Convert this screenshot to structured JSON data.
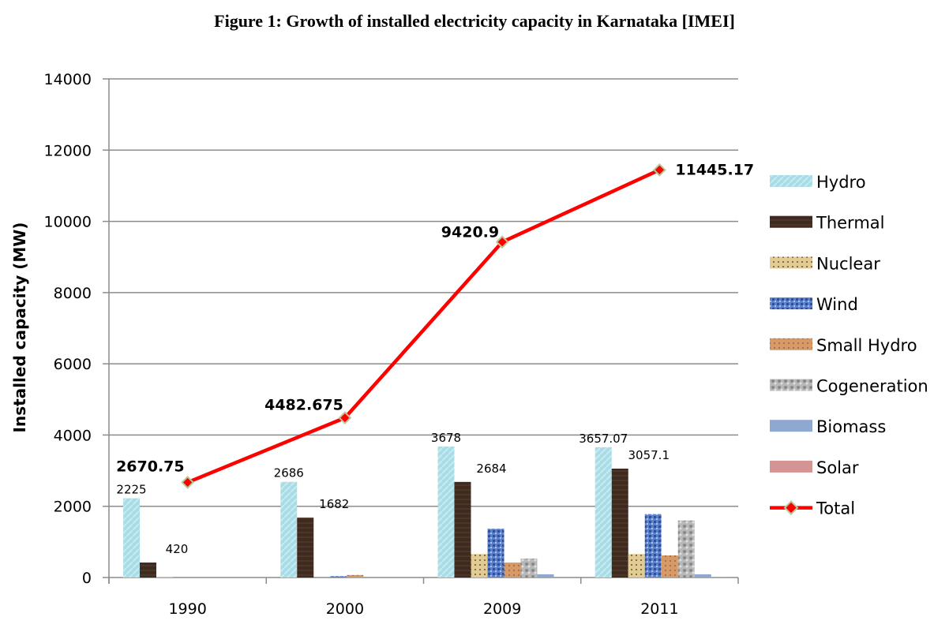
{
  "chart_data": {
    "type": "bar",
    "title": "Figure 1: Growth of installed electricity capacity in Karnataka [IMEI]",
    "xlabel": "",
    "ylabel": "Installed capacity (MW)",
    "ylim": [
      0,
      14000
    ],
    "yticks": [
      0,
      2000,
      4000,
      6000,
      8000,
      10000,
      12000,
      14000
    ],
    "grid": true,
    "legend_position": "right",
    "categories": [
      "1990",
      "2000",
      "2009",
      "2011"
    ],
    "series": [
      {
        "name": "Hydro",
        "color": "#a8dce6",
        "values": [
          2225,
          2686,
          3678,
          3657.07
        ],
        "labels": [
          "2225",
          "2686",
          "3678",
          "3657.07"
        ]
      },
      {
        "name": "Thermal",
        "color": "#3e2a1e",
        "values": [
          420,
          1682,
          2684,
          3057.1
        ],
        "labels": [
          "420",
          "1682",
          "2684",
          "3057.1"
        ]
      },
      {
        "name": "Nuclear",
        "color": "#d9c38a",
        "values": [
          25,
          0,
          660,
          660
        ],
        "labels": []
      },
      {
        "name": "Wind",
        "color": "#4a6fbf",
        "values": [
          0,
          40,
          1370,
          1780
        ],
        "labels": []
      },
      {
        "name": "Small Hydro",
        "color": "#d69a68",
        "values": [
          0,
          70,
          420,
          620
        ],
        "labels": []
      },
      {
        "name": "Cogeneration",
        "color": "#b3b3b3",
        "values": [
          0,
          0,
          530,
          1600
        ],
        "labels": []
      },
      {
        "name": "Biomass",
        "color": "#8ea8d0",
        "values": [
          0,
          0,
          90,
          90
        ],
        "labels": []
      },
      {
        "name": "Solar",
        "color": "#d49494",
        "values": [
          0,
          0,
          0,
          5
        ],
        "labels": []
      }
    ],
    "line_series": {
      "name": "Total",
      "color": "#ff0000",
      "marker_color": "#b8c89a",
      "values": [
        2670.75,
        4482.675,
        9420.9,
        11445.17
      ],
      "labels": [
        "2670.75",
        "4482.675",
        "9420.9",
        "11445.17"
      ]
    }
  }
}
